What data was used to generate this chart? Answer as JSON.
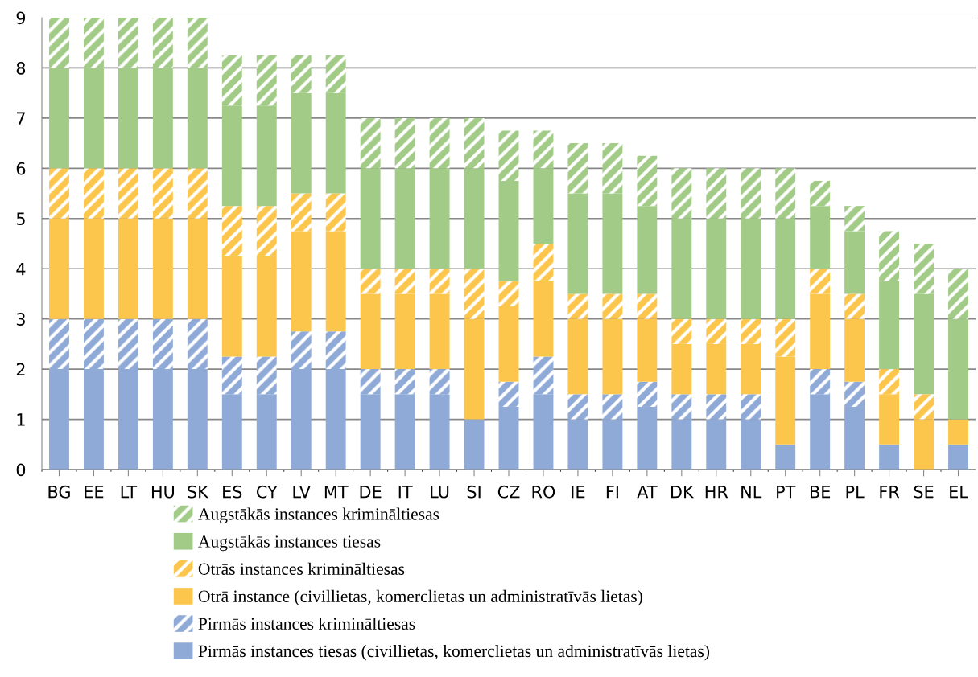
{
  "chart_data": {
    "type": "bar",
    "stacked": true,
    "categories": [
      "BG",
      "EE",
      "LT",
      "HU",
      "SK",
      "ES",
      "CY",
      "LV",
      "MT",
      "DE",
      "IT",
      "LU",
      "SI",
      "CZ",
      "RO",
      "IE",
      "FI",
      "AT",
      "DK",
      "HR",
      "NL",
      "PT",
      "BE",
      "PL",
      "FR",
      "SE",
      "EL"
    ],
    "series": [
      {
        "name": "Pirmās instances tiesas (civillietas, komerclietas un administratīvās lietas)",
        "color": "#8faad6",
        "line_style": "solid",
        "values": [
          2,
          2,
          2,
          2,
          2,
          1.5,
          1.5,
          2,
          2,
          1.5,
          1.5,
          1.5,
          1,
          1.25,
          1.5,
          1,
          1,
          1.25,
          1,
          1,
          1,
          0.5,
          1.5,
          1.25,
          0.5,
          0,
          0.5
        ]
      },
      {
        "name": "Pirmās instances krimināltiesas",
        "color": "#8faad6",
        "line_style": "dashed",
        "values": [
          1,
          1,
          1,
          1,
          1,
          0.75,
          0.75,
          0.75,
          0.75,
          0.5,
          0.5,
          0.5,
          0,
          0.5,
          0.75,
          0.5,
          0.5,
          0.5,
          0.5,
          0.5,
          0.5,
          0,
          0.5,
          0.5,
          0,
          0,
          0
        ]
      },
      {
        "name": "Otrā instance (civillietas, komerclietas un administratīvās lietas)",
        "color": "#fcc64d",
        "line_style": "solid",
        "values": [
          2,
          2,
          2,
          2,
          2,
          2,
          2,
          2,
          2,
          1.5,
          1.5,
          1.5,
          2,
          1.5,
          1.5,
          1.5,
          1.5,
          1.25,
          1,
          1,
          1,
          1.75,
          1.5,
          1.25,
          1,
          1,
          0.5
        ]
      },
      {
        "name": "Otrās instances krimināltiesas",
        "color": "#fcc64d",
        "line_style": "dashed",
        "values": [
          1,
          1,
          1,
          1,
          1,
          1,
          1,
          0.75,
          0.75,
          0.5,
          0.5,
          0.5,
          1,
          0.5,
          0.75,
          0.5,
          0.5,
          0.5,
          0.5,
          0.5,
          0.5,
          0.75,
          0.5,
          0.5,
          0.5,
          0.5,
          0
        ]
      },
      {
        "name": "Augstākās instances tiesas",
        "color": "#a1cb86",
        "line_style": "solid",
        "values": [
          2,
          2,
          2,
          2,
          2,
          2,
          2,
          2,
          2,
          2,
          2,
          2,
          2,
          2,
          1.5,
          2,
          2,
          1.75,
          2,
          2,
          2,
          2,
          1.25,
          1.25,
          1.75,
          2,
          2
        ]
      },
      {
        "name": "Augstākās instances krimināltiesas",
        "color": "#a1cb86",
        "line_style": "dashed",
        "values": [
          1,
          1,
          1,
          1,
          1,
          1,
          1,
          0.75,
          0.75,
          1,
          1,
          1,
          1,
          1,
          0.75,
          1,
          1,
          1,
          1,
          1,
          1,
          1,
          0.5,
          0.5,
          1,
          1,
          1
        ]
      }
    ],
    "ylim": [
      0,
      9
    ],
    "yticks": [
      0,
      1,
      2,
      3,
      4,
      5,
      6,
      7,
      8,
      9
    ],
    "grid": "y",
    "legend": "bottom"
  }
}
